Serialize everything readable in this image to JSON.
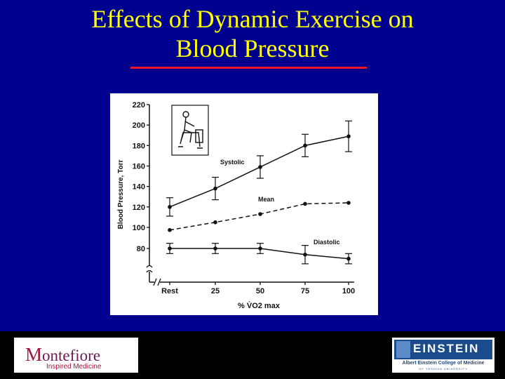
{
  "slide": {
    "title_line1": "Effects of Dynamic Exercise on",
    "title_line2": "Blood Pressure",
    "background_color": "#00008f",
    "title_color": "#ffff00",
    "rule_color": "#e8182a"
  },
  "chart_data": {
    "type": "line",
    "title": "",
    "xlabel": "% V̇O2 max",
    "ylabel": "Blood Pressure, Torr",
    "categories": [
      "Rest",
      "25",
      "50",
      "75",
      "100"
    ],
    "yticks": [
      "80",
      "100",
      "120",
      "140",
      "160",
      "180",
      "200",
      "220"
    ],
    "yaxis_break": true,
    "grid": false,
    "series": [
      {
        "name": "Systolic",
        "values": [
          120,
          138,
          159,
          180,
          189
        ],
        "error": [
          9,
          11,
          11,
          11,
          15
        ],
        "style": "solid"
      },
      {
        "name": "Mean",
        "values": [
          98,
          105,
          113,
          123,
          124
        ],
        "style": "dashed"
      },
      {
        "name": "Diastolic",
        "values": [
          80,
          80,
          80,
          74,
          70
        ],
        "error": [
          5,
          5,
          5,
          9,
          5
        ],
        "style": "solid"
      }
    ],
    "inset": "cyclist-on-ergometer-illustration"
  },
  "footer": {
    "left_logo_name_initial": "M",
    "left_logo_name_rest": "ontefiore",
    "left_logo_tagline": "Inspired Medicine",
    "right_logo_word": "EINSTEIN",
    "right_logo_college": "Albert Einstein College of Medicine",
    "right_logo_university": "OF YESHIVA UNIVERSITY"
  }
}
